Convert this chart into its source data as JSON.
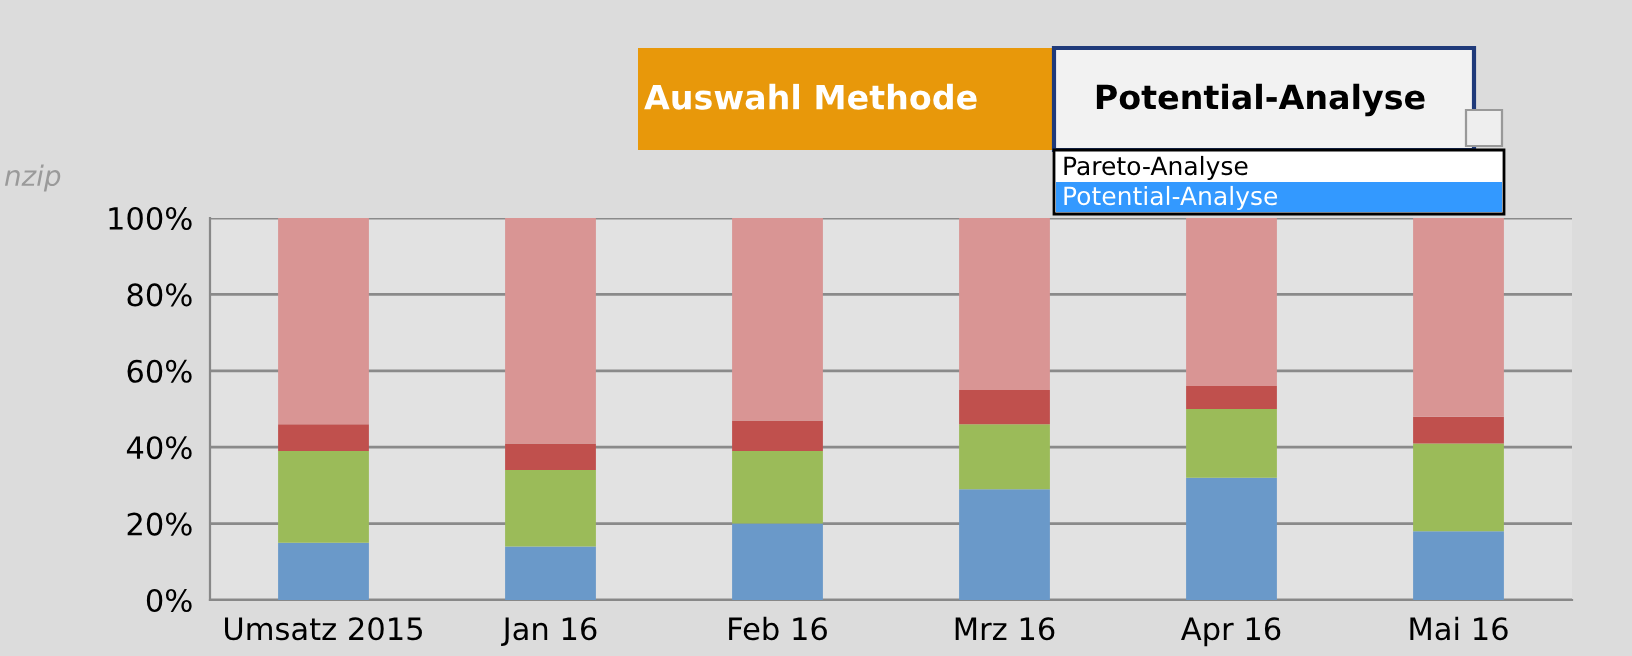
{
  "chart_data": {
    "type": "bar",
    "stacked": true,
    "categories": [
      "Umsatz 2015",
      "Jan 16",
      "Feb 16",
      "Mrz 16",
      "Apr 16",
      "Mai 16"
    ],
    "series": [
      {
        "color": "#6a99c9",
        "values": [
          15,
          14,
          20,
          29,
          32,
          18
        ]
      },
      {
        "color": "#9bbb59",
        "values": [
          24,
          20,
          19,
          17,
          18,
          23
        ]
      },
      {
        "color": "#c0504d",
        "values": [
          7,
          7,
          8,
          9,
          6,
          7
        ]
      },
      {
        "color": "#d99594",
        "values": [
          54,
          59,
          53,
          45,
          44,
          52
        ]
      }
    ],
    "ylim": [
      0,
      100
    ],
    "yticks": [
      {
        "value": 0,
        "label": "0%"
      },
      {
        "value": 20,
        "label": "20%"
      },
      {
        "value": 40,
        "label": "40%"
      },
      {
        "value": 60,
        "label": "60%"
      },
      {
        "value": 80,
        "label": "80%"
      },
      {
        "value": 100,
        "label": "100%"
      }
    ],
    "grid": "y",
    "annotations": [
      "Auswahl Methode",
      "Potential-Analyse",
      "Pareto-Analyse",
      "Potential-Analyse",
      "nzip"
    ]
  }
}
